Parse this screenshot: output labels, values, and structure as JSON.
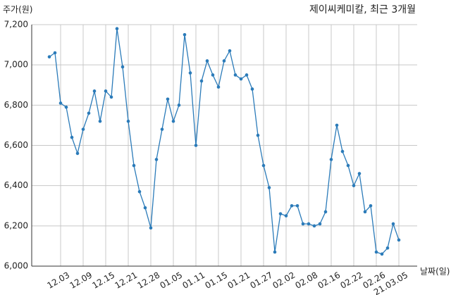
{
  "chart_data": {
    "type": "line",
    "title": "제이씨케미칼, 최근 3개월",
    "y_label": "주가(원)",
    "x_label": "날짜(일)",
    "categories": [
      null,
      null,
      "12.03",
      null,
      null,
      null,
      "12.09",
      null,
      null,
      null,
      "12.15",
      null,
      null,
      null,
      "12.21",
      null,
      null,
      null,
      "12.28",
      null,
      null,
      null,
      "01.05",
      null,
      null,
      null,
      "01.11",
      null,
      null,
      null,
      "01.15",
      null,
      null,
      null,
      "01.21",
      null,
      null,
      null,
      "01.27",
      null,
      null,
      null,
      "02.02",
      null,
      null,
      null,
      "02.08",
      null,
      null,
      null,
      "02.16",
      null,
      null,
      null,
      "02.22",
      null,
      null,
      null,
      "02.26",
      null,
      null,
      null,
      "21.03.05"
    ],
    "series": [
      {
        "name": "주가",
        "color": "#2b7bb9",
        "values": [
          7040,
          7060,
          6810,
          6790,
          6640,
          6560,
          6680,
          6760,
          6870,
          6720,
          6870,
          6840,
          7180,
          6990,
          6720,
          6500,
          6370,
          6290,
          6190,
          6530,
          6680,
          6830,
          6720,
          6800,
          7150,
          6960,
          6600,
          6920,
          7020,
          6950,
          6890,
          7020,
          7070,
          6950,
          6930,
          6950,
          6880,
          6650,
          6500,
          6390,
          6070,
          6260,
          6250,
          6300,
          6300,
          6210,
          6210,
          6200,
          6210,
          6270,
          6530,
          6700,
          6570,
          6500,
          6400,
          6460,
          6270,
          6300,
          6070,
          6060,
          6090,
          6210,
          6130
        ]
      }
    ],
    "ylim": [
      6000,
      7200
    ],
    "yticks": [
      {
        "value": 6000,
        "label": "6,000"
      },
      {
        "value": 6200,
        "label": "6,200"
      },
      {
        "value": 6400,
        "label": "6,400"
      },
      {
        "value": 6600,
        "label": "6,600"
      },
      {
        "value": 6800,
        "label": "6,800"
      },
      {
        "value": 7000,
        "label": "7,000"
      },
      {
        "value": 7200,
        "label": "7,200"
      }
    ],
    "grid": true
  }
}
